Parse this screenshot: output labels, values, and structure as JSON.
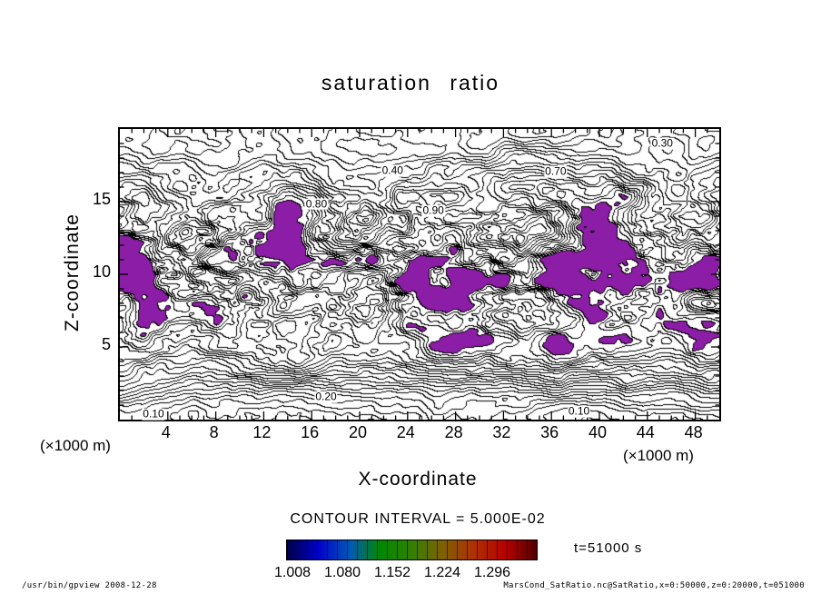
{
  "title": "saturation ratio",
  "footer": {
    "left": "/usr/bin/gpview  2008-12-28",
    "right": "MarsCond_SatRatio.nc@SatRatio,x=0:50000,z=0:20000,t=051000"
  },
  "chart_data": {
    "type": "heatmap",
    "plot_style": "filled-contour",
    "title": "saturation ratio",
    "xlabel": "X-coordinate",
    "ylabel": "Z-coordinate",
    "x_unit_label_left": "(×1000 m)",
    "x_unit_label_right": "(×1000 m)",
    "x_range_1000m": [
      0,
      50
    ],
    "z_range_1000m": [
      0,
      20
    ],
    "x_ticks": [
      4,
      8,
      12,
      16,
      20,
      24,
      28,
      32,
      36,
      40,
      44,
      48
    ],
    "y_ticks": [
      5,
      10,
      15
    ],
    "contour_interval_label": "CONTOUR INTERVAL = 5.000E-02",
    "contour_interval": 0.05,
    "time_label": "t=51000 s",
    "line_color": "#000000",
    "shade_color": "#8c1da6",
    "shade_threshold": 1.0,
    "colorbar": {
      "tick_labels": [
        "1.008",
        "1.080",
        "1.152",
        "1.224",
        "1.296"
      ],
      "colors": [
        "#000048",
        "#0000c8",
        "#0058b8",
        "#008800",
        "#338000",
        "#806000",
        "#b03000",
        "#b80000",
        "#500000"
      ]
    },
    "contour_labels": [
      {
        "text": "0.30",
        "fx": 0.905,
        "fy": 0.05
      },
      {
        "text": "0.40",
        "fx": 0.455,
        "fy": 0.145
      },
      {
        "text": "0.70",
        "fx": 0.727,
        "fy": 0.148
      },
      {
        "text": "0.80",
        "fx": 0.328,
        "fy": 0.258
      },
      {
        "text": "0.90",
        "fx": 0.523,
        "fy": 0.282
      },
      {
        "text": "0.20",
        "fx": 0.344,
        "fy": 0.922
      },
      {
        "text": "0.10",
        "fx": 0.056,
        "fy": 0.982
      },
      {
        "text": "0.10",
        "fx": 0.766,
        "fy": 0.972
      }
    ]
  }
}
